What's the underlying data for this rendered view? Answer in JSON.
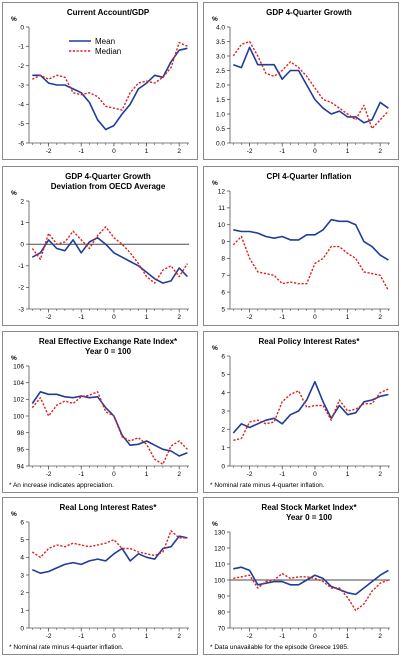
{
  "colors": {
    "mean": "#1f3d99",
    "median": "#e02020",
    "zero_line": "#4a4a4a",
    "axis": "#555555"
  },
  "unit_label": "%",
  "legend": {
    "mean": "Mean",
    "median": "Median"
  },
  "chart_data": [
    {
      "type": "line",
      "title": "Current Account/GDP",
      "subtitle": "",
      "ylim": [
        -6,
        0
      ],
      "yticks": [
        0,
        -1,
        -2,
        -3,
        -4,
        -5,
        -6
      ],
      "xlim": [
        -2.6,
        2.3
      ],
      "xticks": [
        -2,
        -1,
        0,
        1,
        2
      ],
      "legend_position": "top-center",
      "zero_line": false,
      "x": [
        -2.5,
        -2.25,
        -2,
        -1.75,
        -1.5,
        -1.25,
        -1,
        -0.75,
        -0.5,
        -0.25,
        0,
        0.25,
        0.5,
        0.75,
        1,
        1.25,
        1.5,
        1.75,
        2,
        2.25
      ],
      "series": [
        {
          "name": "Mean",
          "values": [
            -2.5,
            -2.5,
            -2.9,
            -3.0,
            -3.0,
            -3.2,
            -3.4,
            -3.9,
            -4.8,
            -5.3,
            -5.1,
            -4.5,
            -4.0,
            -3.2,
            -2.9,
            -2.5,
            -2.6,
            -1.8,
            -1.2,
            -1.1
          ]
        },
        {
          "name": "Median",
          "values": [
            -2.7,
            -2.5,
            -2.7,
            -2.5,
            -2.6,
            -3.4,
            -3.5,
            -3.4,
            -3.6,
            -4.1,
            -4.2,
            -4.3,
            -3.4,
            -2.9,
            -2.8,
            -2.9,
            -2.6,
            -2.1,
            -0.8,
            -1.0
          ]
        }
      ],
      "footnote": ""
    },
    {
      "type": "line",
      "title": "GDP 4-Quarter Growth",
      "subtitle": "",
      "ylim": [
        0,
        4
      ],
      "yticks": [
        4.0,
        3.5,
        3.0,
        2.5,
        2.0,
        1.5,
        1.0,
        0.5,
        0.0
      ],
      "ytick_labels": [
        "4.0",
        "3.5",
        "3.0",
        "2.5",
        "2.0",
        "1.5",
        "1.0",
        "0.5",
        "0.0"
      ],
      "xlim": [
        -2.6,
        2.3
      ],
      "xticks": [
        -2,
        -1,
        0,
        1,
        2
      ],
      "zero_line": false,
      "x": [
        -2.5,
        -2.25,
        -2,
        -1.75,
        -1.5,
        -1.25,
        -1,
        -0.75,
        -0.5,
        -0.25,
        0,
        0.25,
        0.5,
        0.75,
        1,
        1.25,
        1.5,
        1.75,
        2,
        2.25
      ],
      "series": [
        {
          "name": "Mean",
          "values": [
            2.7,
            2.6,
            3.3,
            2.7,
            2.7,
            2.7,
            2.2,
            2.5,
            2.5,
            2.0,
            1.5,
            1.2,
            1.0,
            1.1,
            0.9,
            0.9,
            0.7,
            0.8,
            1.4,
            1.2
          ]
        },
        {
          "name": "Median",
          "values": [
            3.0,
            3.4,
            3.5,
            3.0,
            2.4,
            2.3,
            2.5,
            2.8,
            2.6,
            2.3,
            1.9,
            1.5,
            1.4,
            1.2,
            1.0,
            0.8,
            1.3,
            0.5,
            0.8,
            1.1
          ]
        }
      ],
      "footnote": ""
    },
    {
      "type": "line",
      "title": "GDP 4-Quarter Growth",
      "subtitle": "Deviation from OECD Average",
      "ylim": [
        -3,
        2
      ],
      "yticks": [
        2,
        1,
        0,
        -1,
        -2,
        -3
      ],
      "xlim": [
        -2.6,
        2.3
      ],
      "xticks": [
        -2,
        -1,
        0,
        1,
        2
      ],
      "zero_line": true,
      "x": [
        -2.5,
        -2.25,
        -2,
        -1.75,
        -1.5,
        -1.25,
        -1,
        -0.75,
        -0.5,
        -0.25,
        0,
        0.25,
        0.5,
        0.75,
        1,
        1.25,
        1.5,
        1.75,
        2,
        2.25
      ],
      "series": [
        {
          "name": "Mean",
          "values": [
            -0.6,
            -0.4,
            0.2,
            -0.2,
            -0.3,
            0.2,
            -0.4,
            0.1,
            0.3,
            0.0,
            -0.4,
            -0.6,
            -0.8,
            -1.0,
            -1.3,
            -1.6,
            -1.8,
            -1.7,
            -1.1,
            -1.5
          ]
        },
        {
          "name": "Median",
          "values": [
            -0.2,
            -0.7,
            0.5,
            0.0,
            0.1,
            0.6,
            0.2,
            -0.2,
            0.4,
            0.8,
            0.3,
            0.0,
            -0.4,
            -0.9,
            -1.5,
            -1.8,
            -1.2,
            -1.0,
            -1.5,
            -0.9
          ]
        }
      ],
      "footnote": ""
    },
    {
      "type": "line",
      "title": "CPI 4-Quarter Inflation",
      "subtitle": "",
      "ylim": [
        5,
        12
      ],
      "yticks": [
        12,
        11,
        10,
        9,
        8,
        7,
        6,
        5
      ],
      "xlim": [
        -2.6,
        2.3
      ],
      "xticks": [
        -2,
        -1,
        0,
        1,
        2
      ],
      "zero_line": false,
      "x": [
        -2.5,
        -2.25,
        -2,
        -1.75,
        -1.5,
        -1.25,
        -1,
        -0.75,
        -0.5,
        -0.25,
        0,
        0.25,
        0.5,
        0.75,
        1,
        1.25,
        1.5,
        1.75,
        2,
        2.25
      ],
      "series": [
        {
          "name": "Mean",
          "values": [
            9.7,
            9.6,
            9.6,
            9.5,
            9.3,
            9.2,
            9.3,
            9.1,
            9.1,
            9.4,
            9.4,
            9.7,
            10.3,
            10.2,
            10.2,
            10.0,
            9.0,
            8.7,
            8.2,
            7.9
          ]
        },
        {
          "name": "Median",
          "values": [
            8.8,
            9.3,
            8.0,
            7.2,
            7.1,
            7.0,
            6.5,
            6.6,
            6.5,
            6.5,
            7.7,
            8.0,
            8.7,
            8.7,
            8.3,
            8.0,
            7.2,
            7.1,
            7.0,
            6.1
          ]
        }
      ],
      "footnote": ""
    },
    {
      "type": "line",
      "title": "Real Effective Exchange Rate Index*",
      "subtitle": "Year 0 = 100",
      "ylim": [
        94,
        106
      ],
      "yticks": [
        106,
        104,
        102,
        100,
        98,
        96,
        94
      ],
      "xlim": [
        -2.6,
        2.3
      ],
      "xticks": [
        -2,
        -1,
        0,
        1,
        2
      ],
      "zero_line": false,
      "x": [
        -2.5,
        -2.25,
        -2,
        -1.75,
        -1.5,
        -1.25,
        -1,
        -0.75,
        -0.5,
        -0.25,
        0,
        0.25,
        0.5,
        0.75,
        1,
        1.25,
        1.5,
        1.75,
        2,
        2.25
      ],
      "series": [
        {
          "name": "Mean",
          "values": [
            101.5,
            102.9,
            102.6,
            102.6,
            102.3,
            102.2,
            102.4,
            102.2,
            102.3,
            101.0,
            100.0,
            97.7,
            96.5,
            96.6,
            97.0,
            96.5,
            96.0,
            95.8,
            95.2,
            95.6
          ]
        },
        {
          "name": "Median",
          "values": [
            101.0,
            102.2,
            100.0,
            101.3,
            101.8,
            101.5,
            102.3,
            102.5,
            102.9,
            100.5,
            100.0,
            97.5,
            97.0,
            97.4,
            96.6,
            94.8,
            94.2,
            96.4,
            97.0,
            96.0
          ]
        }
      ],
      "footnote": "* An increase indicates appreciation."
    },
    {
      "type": "line",
      "title": "Real Policy Interest Rates*",
      "subtitle": "",
      "ylim": [
        0,
        6
      ],
      "yticks": [
        6,
        5,
        4,
        3,
        2,
        1,
        0
      ],
      "xlim": [
        -2.6,
        2.3
      ],
      "xticks": [
        -2,
        -1,
        0,
        1,
        2
      ],
      "zero_line": false,
      "x": [
        -2.5,
        -2.25,
        -2,
        -1.75,
        -1.5,
        -1.25,
        -1,
        -0.75,
        -0.5,
        -0.25,
        0,
        0.25,
        0.5,
        0.75,
        1,
        1.25,
        1.5,
        1.75,
        2,
        2.25
      ],
      "series": [
        {
          "name": "Mean",
          "values": [
            1.8,
            2.3,
            2.1,
            2.3,
            2.5,
            2.6,
            2.3,
            2.8,
            3.0,
            3.6,
            4.6,
            3.5,
            2.6,
            3.3,
            2.8,
            2.9,
            3.5,
            3.6,
            3.8,
            3.9
          ]
        },
        {
          "name": "Median",
          "values": [
            1.4,
            1.5,
            2.4,
            2.5,
            2.3,
            2.4,
            3.5,
            3.9,
            4.1,
            3.2,
            3.3,
            3.3,
            2.5,
            3.6,
            3.0,
            3.1,
            3.4,
            3.4,
            4.0,
            4.2
          ]
        }
      ],
      "footnote": "* Nominal rate minus 4-quarter inflation."
    },
    {
      "type": "line",
      "title": "Real Long Interest Rates*",
      "subtitle": "",
      "ylim": [
        0,
        6
      ],
      "yticks": [
        6,
        5,
        4,
        3,
        2,
        1,
        0
      ],
      "xlim": [
        -2.6,
        2.3
      ],
      "xticks": [
        -2,
        -1,
        0,
        1,
        2
      ],
      "zero_line": false,
      "x": [
        -2.5,
        -2.25,
        -2,
        -1.75,
        -1.5,
        -1.25,
        -1,
        -0.75,
        -0.5,
        -0.25,
        0,
        0.25,
        0.5,
        0.75,
        1,
        1.25,
        1.5,
        1.75,
        2,
        2.25
      ],
      "series": [
        {
          "name": "Mean",
          "values": [
            3.3,
            3.1,
            3.2,
            3.4,
            3.6,
            3.7,
            3.6,
            3.8,
            3.9,
            3.8,
            4.2,
            4.5,
            3.8,
            4.2,
            4.0,
            3.9,
            4.5,
            4.6,
            5.2,
            5.1
          ]
        },
        {
          "name": "Median",
          "values": [
            4.3,
            4.0,
            4.5,
            4.7,
            4.6,
            4.8,
            4.7,
            4.6,
            4.7,
            4.8,
            5.0,
            4.5,
            4.5,
            4.3,
            4.2,
            4.1,
            4.3,
            5.5,
            5.1,
            5.1
          ]
        }
      ],
      "footnote": "* Nominal rate minus 4-quarter inflation."
    },
    {
      "type": "line",
      "title": "Real Stock Market Index*",
      "subtitle": "Year 0 = 100",
      "ylim": [
        70,
        130
      ],
      "yticks": [
        130,
        120,
        110,
        100,
        90,
        80,
        70
      ],
      "xlim": [
        -2.6,
        2.3
      ],
      "xticks": [
        -2,
        -1,
        0,
        1,
        2
      ],
      "zero_line": true,
      "zero_value": 100,
      "x": [
        -2.5,
        -2.25,
        -2,
        -1.75,
        -1.5,
        -1.25,
        -1,
        -0.75,
        -0.5,
        -0.25,
        0,
        0.25,
        0.5,
        0.75,
        1,
        1.25,
        1.5,
        1.75,
        2,
        2.25
      ],
      "series": [
        {
          "name": "Mean",
          "values": [
            107,
            108,
            106,
            97,
            98,
            99,
            99,
            97,
            97,
            100,
            103,
            101,
            96,
            94,
            92,
            91,
            95,
            99,
            103,
            106
          ]
        },
        {
          "name": "Median",
          "values": [
            101,
            102,
            103,
            95,
            99,
            100,
            104,
            101,
            102,
            102,
            101,
            99,
            95,
            95,
            89,
            81,
            85,
            93,
            98,
            100
          ]
        }
      ],
      "footnote": "* Data unavailable for the episode Greece 1985."
    }
  ]
}
